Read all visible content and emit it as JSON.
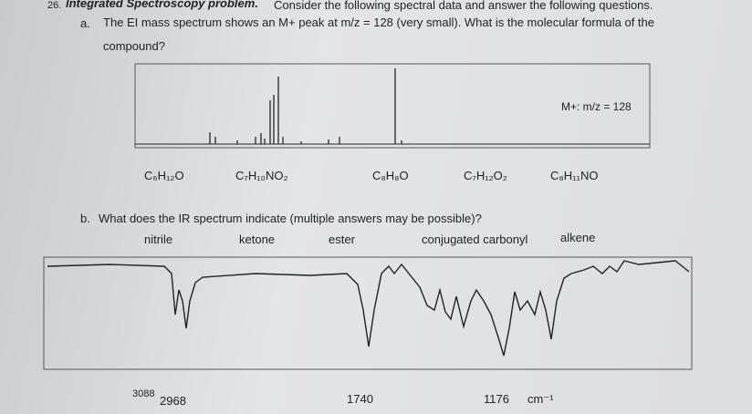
{
  "header": {
    "number": "26.",
    "title": "Integrated Spectroscopy problem.",
    "instruction": "Consider the following spectral data and answer the following questions."
  },
  "part_a": {
    "label": "a.",
    "question": "The EI mass spectrum shows an M+ peak at m/z = 128 (very small). What is the molecular formula of the compound?",
    "annotation": "M+: m/z = 128",
    "choices": [
      "C₆H₁₂O",
      "C₇H₁₀NO₂",
      "C₈H₈O",
      "C₇H₁₂O₂",
      "C₈H₁₁NO"
    ]
  },
  "part_b": {
    "label": "b.",
    "question": "What does the IR spectrum indicate (multiple answers may be possible)?",
    "choices": [
      "nitrile",
      "ketone",
      "ester",
      "conjugated carbonyl",
      "alkene"
    ],
    "annotations": [
      "3088",
      "2968",
      "1740",
      "1176",
      "cm⁻¹"
    ]
  }
}
